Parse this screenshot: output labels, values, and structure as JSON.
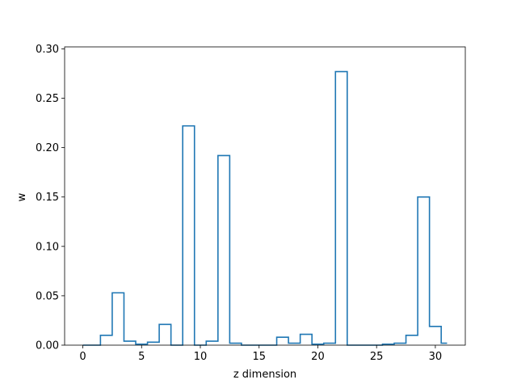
{
  "chart_data": {
    "type": "step",
    "xlabel": "z dimension",
    "ylabel": "w",
    "xlim": [
      -1.55,
      32.55
    ],
    "ylim": [
      0,
      0.302
    ],
    "xticks": [
      0,
      5,
      10,
      15,
      20,
      25,
      30
    ],
    "yticks": [
      0.0,
      0.05,
      0.1,
      0.15,
      0.2,
      0.25,
      0.3
    ],
    "ytick_labels": [
      "0.00",
      "0.05",
      "0.10",
      "0.15",
      "0.20",
      "0.25",
      "0.30"
    ],
    "grid": false,
    "line_color": "#1f77b4",
    "x": [
      0,
      1,
      2,
      3,
      4,
      5,
      6,
      7,
      8,
      9,
      10,
      11,
      12,
      13,
      14,
      15,
      16,
      17,
      18,
      19,
      20,
      21,
      22,
      23,
      24,
      25,
      26,
      27,
      28,
      29,
      30,
      31
    ],
    "values": [
      0.0,
      0.0,
      0.01,
      0.053,
      0.004,
      0.001,
      0.003,
      0.021,
      0.0,
      0.222,
      0.0,
      0.004,
      0.192,
      0.002,
      0.0,
      0.0,
      0.0,
      0.008,
      0.002,
      0.011,
      0.001,
      0.002,
      0.277,
      0.0,
      0.0,
      0.0,
      0.001,
      0.002,
      0.01,
      0.15,
      0.019,
      0.002
    ]
  }
}
